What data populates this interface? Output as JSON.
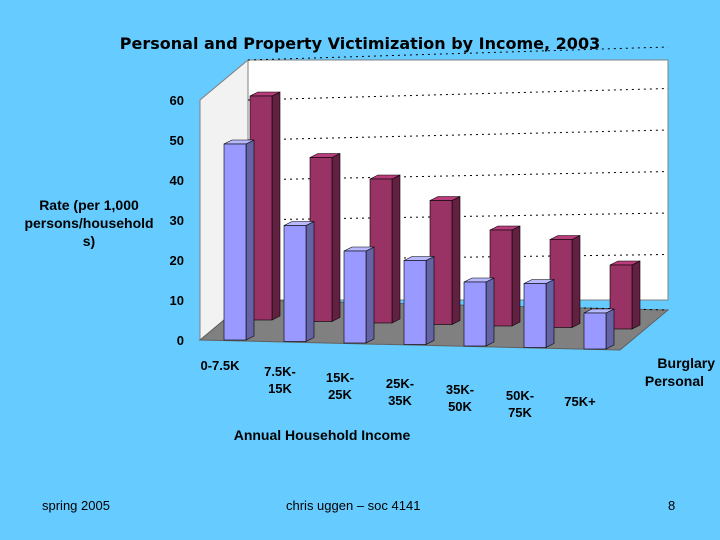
{
  "footer": {
    "left": "spring 2005",
    "center": "chris uggen – soc 4141",
    "page": "8"
  },
  "colors": {
    "burglary": "#993366",
    "personal": "#9999FF",
    "floor": "#808080",
    "wall": "#FFFFFF"
  },
  "chart_data": {
    "type": "bar",
    "title": "Personal and Property Victimization by Income, 2003",
    "xlabel": "Annual Household Income",
    "ylabel": "Rate (per 1,000 persons/households)",
    "ylabel_lines": [
      "Rate (per 1,000",
      "persons/household",
      "s)"
    ],
    "ylim": [
      0,
      60
    ],
    "yticks": [
      "0",
      "10",
      "20",
      "30",
      "40",
      "50",
      "60"
    ],
    "categories": [
      "0-7.5K",
      "7.5K-15K",
      "15K-25K",
      "25K-35K",
      "35K-50K",
      "50K-75K",
      "75K+"
    ],
    "category_lines": [
      [
        "0-7.5K"
      ],
      [
        "7.5K-",
        "15K"
      ],
      [
        "15K-",
        "25K"
      ],
      [
        "25K-",
        "35K"
      ],
      [
        "35K-",
        "50K"
      ],
      [
        "50K-",
        "75K"
      ],
      [
        "75K+"
      ]
    ],
    "series": [
      {
        "name": "Burglary",
        "values": [
          56,
          41,
          36,
          31,
          24,
          22,
          16
        ]
      },
      {
        "name": "Personal",
        "values": [
          49,
          29,
          23,
          21,
          16,
          16,
          9
        ]
      }
    ]
  }
}
